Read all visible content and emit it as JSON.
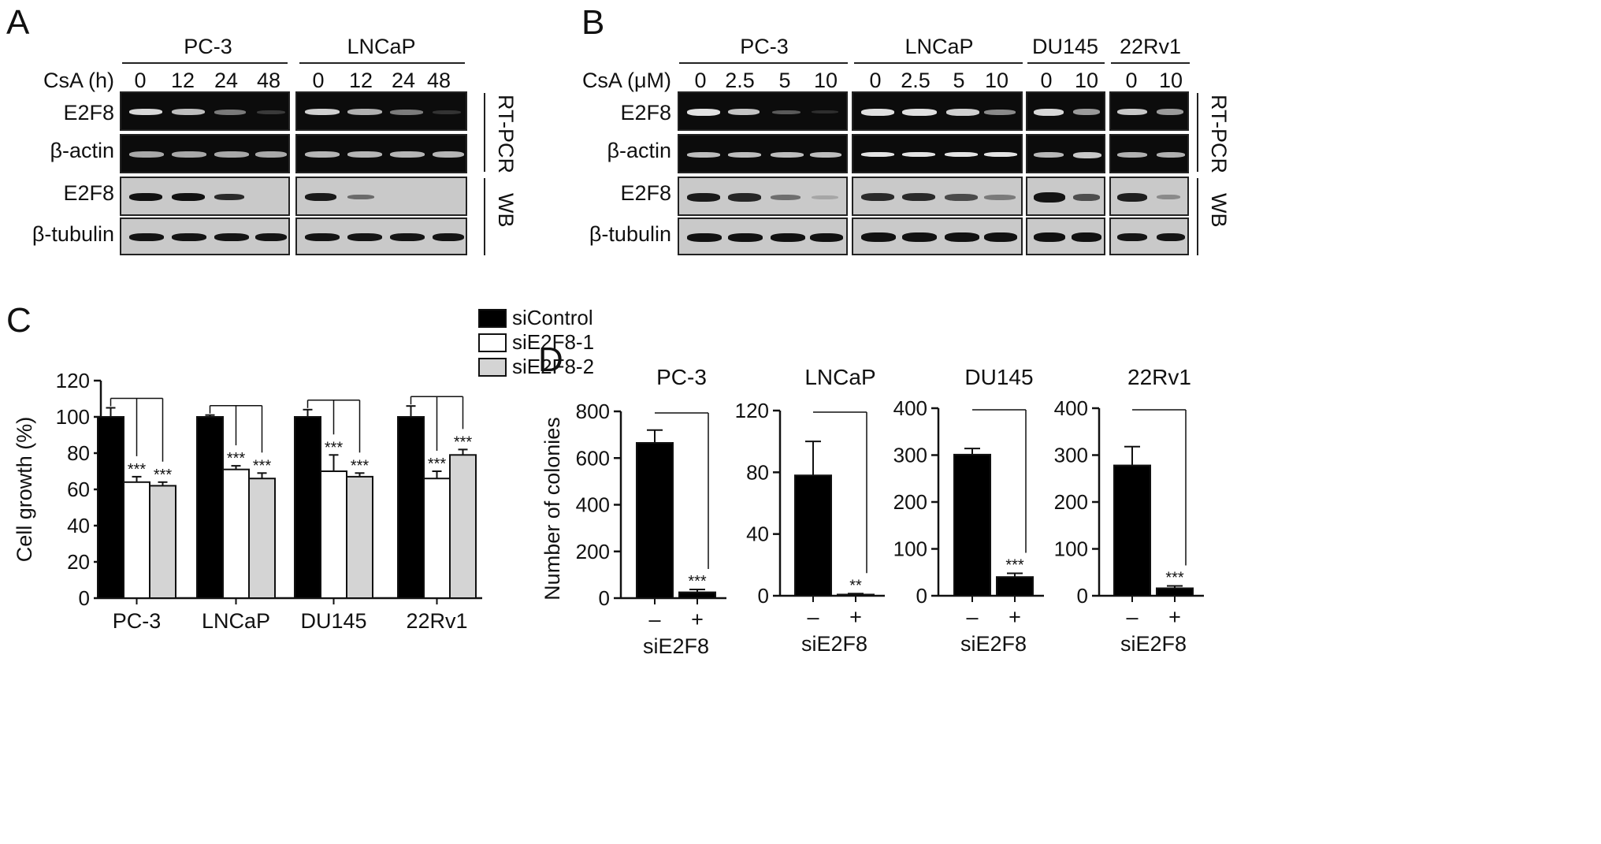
{
  "panel_labels": {
    "a": "A",
    "b": "B",
    "c": "C",
    "d": "D"
  },
  "panel_a": {
    "groups": [
      "PC-3",
      "LNCaP"
    ],
    "treatment_label": "CsA (h)",
    "lanes": [
      "0",
      "12",
      "24",
      "48",
      "0",
      "12",
      "24",
      "48"
    ],
    "rows": [
      "E2F8",
      "β-actin",
      "E2F8",
      "β-tubulin"
    ],
    "side_labels": [
      "RT-PCR",
      "WB"
    ]
  },
  "panel_b": {
    "groups": [
      "PC-3",
      "LNCaP",
      "DU145",
      "22Rv1"
    ],
    "treatment_label": "CsA (μM)",
    "lanes": [
      "0",
      "2.5",
      "5",
      "10",
      "0",
      "2.5",
      "5",
      "10",
      "0",
      "10",
      "0",
      "10"
    ],
    "rows": [
      "E2F8",
      "β-actin",
      "E2F8",
      "β-tubulin"
    ],
    "side_labels": [
      "RT-PCR",
      "WB"
    ]
  },
  "chart_data": [
    {
      "type": "bar",
      "panel": "C",
      "categories": [
        "PC-3",
        "LNCaP",
        "DU145",
        "22Rv1"
      ],
      "series": [
        {
          "name": "siControl",
          "values": [
            100,
            100,
            100,
            100
          ],
          "errors": [
            5,
            1,
            4,
            6
          ],
          "color": "#000000"
        },
        {
          "name": "siE2F8-1",
          "values": [
            64,
            71,
            70,
            66
          ],
          "errors": [
            3,
            2,
            9,
            4
          ],
          "color": "#ffffff"
        },
        {
          "name": "siE2F8-2",
          "values": [
            62,
            66,
            67,
            79
          ],
          "errors": [
            2,
            3,
            2,
            3
          ],
          "color": "#d4d4d4"
        }
      ],
      "significance": [
        [
          "",
          "***",
          "***"
        ],
        [
          "",
          "***",
          "***"
        ],
        [
          "",
          "***",
          "***"
        ],
        [
          "",
          "***",
          "***"
        ]
      ],
      "ylabel": "Cell growth (%)",
      "yticks": [
        "0",
        "20",
        "40",
        "60",
        "80",
        "100",
        "120"
      ],
      "ylim": [
        0,
        120
      ],
      "legend": "top-right"
    },
    {
      "type": "bar",
      "panel": "D",
      "title": "PC-3",
      "categories": [
        "–",
        "+"
      ],
      "values": [
        665,
        25
      ],
      "errors": [
        55,
        12
      ],
      "significance": [
        "",
        "***"
      ],
      "xlabel": "siE2F8",
      "ylabel": "Number of colonies",
      "yticks": [
        "0",
        "200",
        "400",
        "600",
        "800"
      ],
      "ylim": [
        0,
        800
      ]
    },
    {
      "type": "bar",
      "panel": "D",
      "title": "LNCaP",
      "categories": [
        "–",
        "+"
      ],
      "values": [
        78,
        0.8
      ],
      "errors": [
        22,
        0.6
      ],
      "significance": [
        "",
        "**"
      ],
      "xlabel": "siE2F8",
      "yticks": [
        "0",
        "40",
        "80",
        "120"
      ],
      "ylim": [
        0,
        120
      ]
    },
    {
      "type": "bar",
      "panel": "D",
      "title": "DU145",
      "categories": [
        "–",
        "+"
      ],
      "values": [
        301,
        40
      ],
      "errors": [
        13,
        8
      ],
      "significance": [
        "",
        "***"
      ],
      "xlabel": "siE2F8",
      "yticks": [
        "0",
        "100",
        "200",
        "300",
        "400"
      ],
      "ylim": [
        0,
        400
      ]
    },
    {
      "type": "bar",
      "panel": "D",
      "title": "22Rv1",
      "categories": [
        "–",
        "+"
      ],
      "values": [
        278,
        16
      ],
      "errors": [
        40,
        5
      ],
      "significance": [
        "",
        "***"
      ],
      "xlabel": "siE2F8",
      "yticks": [
        "0",
        "100",
        "200",
        "300",
        "400"
      ],
      "ylim": [
        0,
        400
      ]
    }
  ]
}
